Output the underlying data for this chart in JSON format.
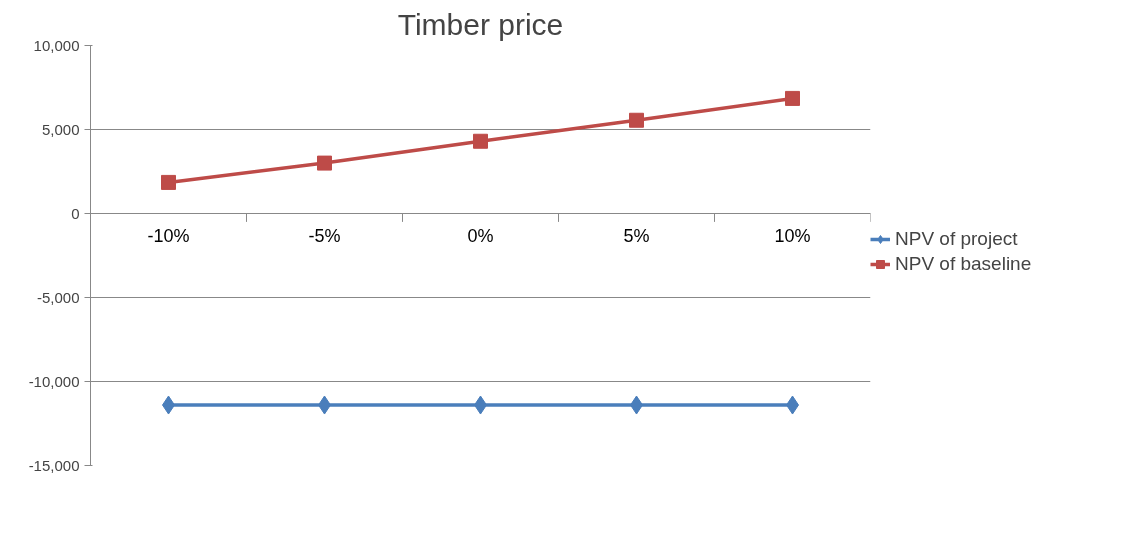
{
  "chart_data": {
    "type": "line",
    "title": "Timber price",
    "categories": [
      "-10%",
      "-5%",
      "0%",
      "5%",
      "10%"
    ],
    "series": [
      {
        "name": "NPV of project",
        "color": "#4a7ebb",
        "marker": "diamond",
        "values": [
          -11400,
          -11400,
          -11400,
          -11400,
          -11400
        ]
      },
      {
        "name": "NPV of baseline",
        "color": "#be4b48",
        "marker": "square",
        "values": [
          1850,
          3000,
          4300,
          5550,
          6850
        ]
      }
    ],
    "ylim": [
      -15000,
      10000
    ],
    "yticks": [
      {
        "value": -15000,
        "label": "-15,000"
      },
      {
        "value": -10000,
        "label": "-10,000"
      },
      {
        "value": -5000,
        "label": "-5,000"
      },
      {
        "value": 0,
        "label": "0"
      },
      {
        "value": 5000,
        "label": "5,000"
      },
      {
        "value": 10000,
        "label": "10,000"
      }
    ],
    "grid": "y",
    "legend": "right"
  }
}
